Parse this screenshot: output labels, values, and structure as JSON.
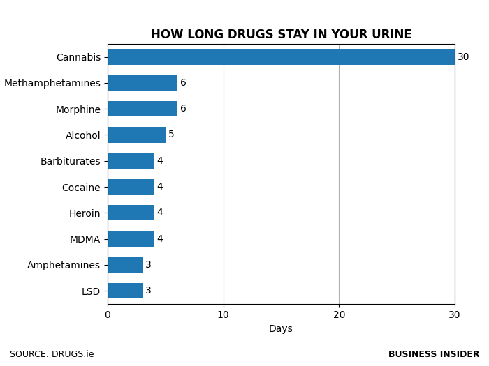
{
  "chart_data": {
    "type": "bar",
    "orientation": "horizontal",
    "title": "HOW LONG DRUGS STAY IN YOUR URINE",
    "categories": [
      "Cannabis",
      "Methamphetamines",
      "Morphine",
      "Alcohol",
      "Barbiturates",
      "Cocaine",
      "Heroin",
      "MDMA",
      "Amphetamines",
      "LSD"
    ],
    "values": [
      30,
      6,
      6,
      5,
      4,
      4,
      4,
      4,
      3,
      3
    ],
    "x_label": "Days",
    "xlim": [
      0,
      30
    ],
    "xticks": [
      0,
      10,
      20,
      30
    ],
    "grid": true,
    "data_labels": true,
    "annotations": [
      "SOURCE: DRUGS.ie",
      "BUSINESS INSIDER"
    ]
  }
}
